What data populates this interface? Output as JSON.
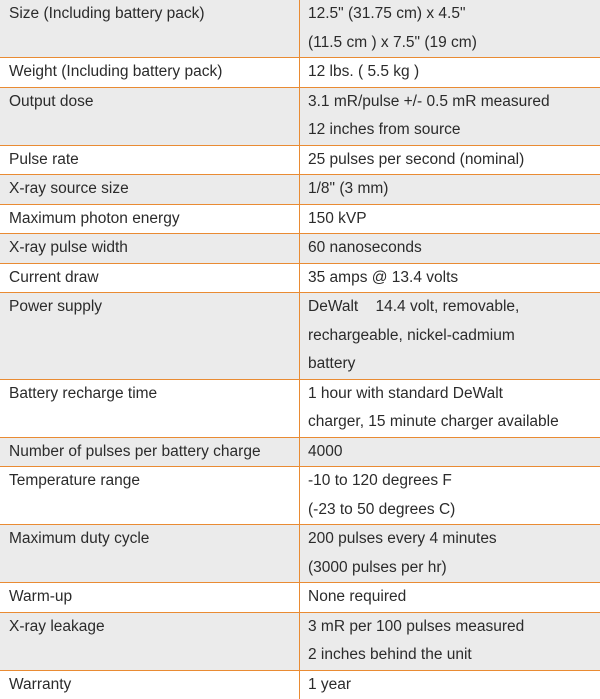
{
  "table": {
    "rows": [
      [
        "Size (Including battery pack)",
        [
          "12.5\" (31.75 cm) x 4.5\"",
          "(11.5 cm ) x 7.5\" (19 cm)"
        ]
      ],
      [
        "Weight (Including battery pack)",
        [
          "12 lbs. ( 5.5 kg )"
        ]
      ],
      [
        "Output dose",
        [
          "3.1 mR/pulse +/- 0.5 mR measured",
          "12 inches from source"
        ]
      ],
      [
        "Pulse rate",
        [
          "25 pulses per second (nominal)"
        ]
      ],
      [
        "X-ray source size",
        [
          "1/8\" (3 mm)"
        ]
      ],
      [
        "Maximum photon energy",
        [
          "150 kVP"
        ]
      ],
      [
        "X-ray pulse width",
        [
          "60 nanoseconds"
        ]
      ],
      [
        "Current draw",
        [
          "35 amps @ 13.4 volts"
        ]
      ],
      [
        "Power supply",
        [
          "DeWalt    14.4 volt, removable,",
          "rechargeable, nickel-cadmium",
          "battery"
        ]
      ],
      [
        "Battery recharge time",
        [
          "1 hour with standard DeWalt",
          "charger, 15 minute charger available"
        ]
      ],
      [
        "Number of pulses per battery charge",
        [
          "4000"
        ]
      ],
      [
        "Temperature range",
        [
          "-10 to 120 degrees F",
          "(-23 to 50 degrees C)"
        ]
      ],
      [
        "Maximum duty cycle",
        [
          "200 pulses every 4 minutes",
          "(3000 pulses per hr)"
        ]
      ],
      [
        "Warm-up",
        [
          "None required"
        ]
      ],
      [
        "X-ray leakage",
        [
          "3 mR per 100 pulses measured",
          "2 inches behind the unit"
        ]
      ],
      [
        "Warranty",
        [
          "1 year"
        ]
      ]
    ]
  }
}
